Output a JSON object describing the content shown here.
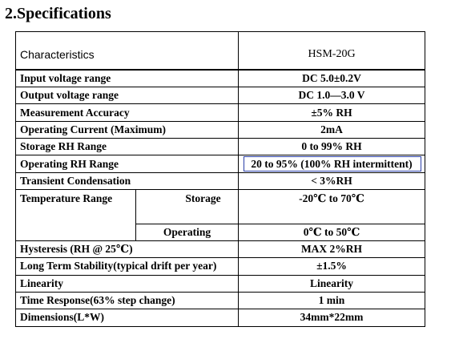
{
  "section": {
    "title": "2.Specifications"
  },
  "table": {
    "header": {
      "characteristics": "Characteristics",
      "model": "HSM-20G"
    },
    "rows": [
      {
        "label": "Input voltage range",
        "value": "DC 5.0±0.2V"
      },
      {
        "label": "Output voltage range",
        "value": "DC 1.0—3.0 V"
      },
      {
        "label": "Measurement Accuracy",
        "value": "±5% RH"
      },
      {
        "label": "Operating Current (Maximum)",
        "value": "2mA"
      },
      {
        "label": "Storage RH Range",
        "value": "0 to 99% RH"
      },
      {
        "label": "Operating RH Range",
        "value": "20 to 95% (100% RH intermittent)"
      },
      {
        "label": "Transient Condensation",
        "value": "< 3%RH"
      },
      {
        "label": "Temperature Range",
        "sub_storage": "Storage",
        "value_storage": "-20℃  to 70℃",
        "sub_operating": "Operating",
        "value_operating": "0℃  to 50℃"
      },
      {
        "label": "Hysteresis (RH @ 25℃)",
        "value": "MAX 2%RH"
      },
      {
        "label": "Long Term Stability(typical drift per year)",
        "value": "±1.5%"
      },
      {
        "label": "Linearity",
        "value": "Linearity"
      },
      {
        "label": "Time Response(63% step change)",
        "value": "1 min"
      },
      {
        "label": "Dimensions(L*W)",
        "value": "34mm*22mm"
      }
    ]
  }
}
